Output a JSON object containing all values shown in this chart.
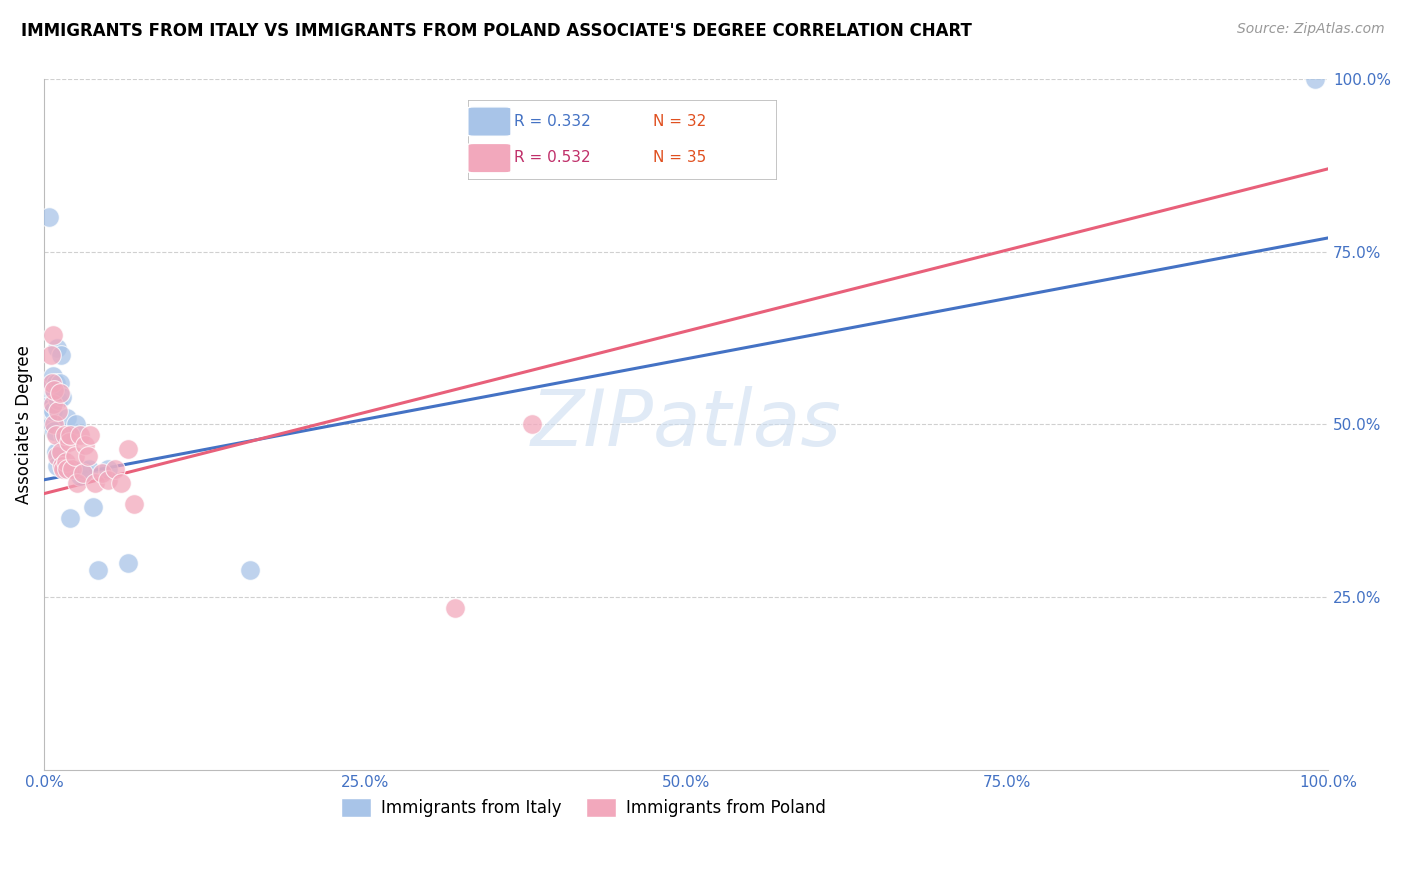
{
  "title": "IMMIGRANTS FROM ITALY VS IMMIGRANTS FROM POLAND ASSOCIATE'S DEGREE CORRELATION CHART",
  "source": "Source: ZipAtlas.com",
  "ylabel": "Associate's Degree",
  "xlim": [
    0,
    1.0
  ],
  "ylim": [
    0,
    1.0
  ],
  "xtick_positions": [
    0.0,
    0.25,
    0.5,
    0.75,
    1.0
  ],
  "xtick_labels": [
    "0.0%",
    "25.0%",
    "50.0%",
    "75.0%",
    "100.0%"
  ],
  "ytick_positions": [
    0.25,
    0.5,
    0.75,
    1.0
  ],
  "ytick_labels": [
    "25.0%",
    "50.0%",
    "75.0%",
    "100.0%"
  ],
  "italy_R": 0.332,
  "italy_N": 32,
  "poland_R": 0.532,
  "poland_N": 35,
  "watermark": "ZIPatlas",
  "italy_color": "#a8c4e8",
  "poland_color": "#f2a8bc",
  "italy_line_color": "#4472c4",
  "poland_line_color": "#e8607a",
  "background_color": "#ffffff",
  "grid_color": "#d0d0d0",
  "italy_line_x0": 0.0,
  "italy_line_y0": 0.42,
  "italy_line_x1": 1.0,
  "italy_line_y1": 0.77,
  "poland_line_x0": 0.0,
  "poland_line_y0": 0.4,
  "poland_line_x1": 1.0,
  "poland_line_y1": 0.87,
  "italy_x": [
    0.002,
    0.004,
    0.005,
    0.005,
    0.006,
    0.006,
    0.007,
    0.007,
    0.008,
    0.008,
    0.009,
    0.009,
    0.01,
    0.01,
    0.011,
    0.012,
    0.013,
    0.014,
    0.015,
    0.016,
    0.018,
    0.02,
    0.025,
    0.028,
    0.03,
    0.035,
    0.038,
    0.042,
    0.05,
    0.065,
    0.16,
    0.99
  ],
  "italy_y": [
    0.54,
    0.8,
    0.56,
    0.53,
    0.52,
    0.5,
    0.57,
    0.52,
    0.49,
    0.545,
    0.46,
    0.56,
    0.44,
    0.61,
    0.535,
    0.56,
    0.6,
    0.54,
    0.485,
    0.435,
    0.51,
    0.365,
    0.5,
    0.425,
    0.435,
    0.435,
    0.38,
    0.29,
    0.435,
    0.3,
    0.29,
    1.0
  ],
  "poland_x": [
    0.005,
    0.006,
    0.007,
    0.007,
    0.008,
    0.008,
    0.009,
    0.01,
    0.011,
    0.012,
    0.013,
    0.014,
    0.015,
    0.016,
    0.017,
    0.018,
    0.019,
    0.02,
    0.022,
    0.024,
    0.026,
    0.028,
    0.03,
    0.032,
    0.034,
    0.036,
    0.04,
    0.045,
    0.05,
    0.055,
    0.06,
    0.065,
    0.07,
    0.32,
    0.38
  ],
  "poland_y": [
    0.6,
    0.56,
    0.63,
    0.53,
    0.55,
    0.5,
    0.485,
    0.455,
    0.52,
    0.545,
    0.46,
    0.44,
    0.435,
    0.485,
    0.445,
    0.435,
    0.475,
    0.485,
    0.435,
    0.455,
    0.415,
    0.485,
    0.43,
    0.47,
    0.455,
    0.485,
    0.415,
    0.43,
    0.42,
    0.435,
    0.415,
    0.465,
    0.385,
    0.235,
    0.5
  ]
}
